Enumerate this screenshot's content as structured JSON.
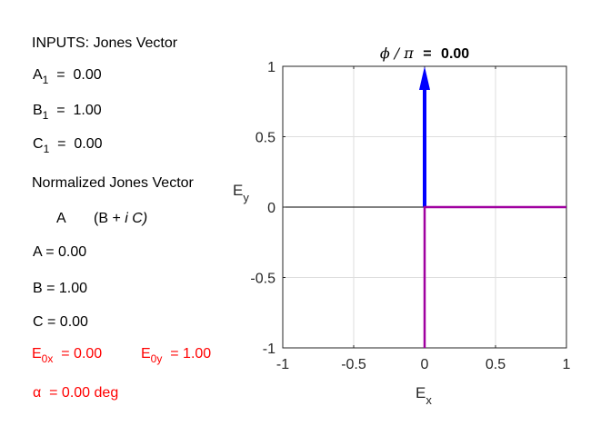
{
  "left_panel": {
    "inputs_heading": "INPUTS: Jones Vector",
    "a1": {
      "letter": "A",
      "sub": "1",
      "eq": "=",
      "value": "0.00"
    },
    "b1": {
      "letter": "B",
      "sub": "1",
      "eq": "=",
      "value": "1.00"
    },
    "c1": {
      "letter": "C",
      "sub": "1",
      "eq": "=",
      "value": "0.00"
    },
    "normalized_heading": "Normalized Jones Vector",
    "vector_form": {
      "a": "A",
      "b_open": "(B +",
      "i": "i",
      "c_close": "C)"
    },
    "a": "A  =  0.00",
    "b": "B  =  1.00",
    "c": "C  =  0.00",
    "e0x": {
      "letter": "E",
      "sub": "0x",
      "text": "=  0.00"
    },
    "e0y": {
      "letter": "E",
      "sub": "0y",
      "text": "=  1.00"
    },
    "alpha": {
      "symbol": "α",
      "text": "=  0.00  deg"
    }
  },
  "chart_data": {
    "type": "line",
    "title": {
      "symbol": "ϕ / π",
      "eq": "=",
      "value": "0.00"
    },
    "xlabel": {
      "letter": "E",
      "sub": "x"
    },
    "ylabel": {
      "letter": "E",
      "sub": "y"
    },
    "xlim": [
      -1,
      1
    ],
    "ylim": [
      -1,
      1
    ],
    "xticks": [
      -1,
      -0.5,
      0,
      0.5,
      1
    ],
    "xtick_labels": [
      "-1",
      "-0.5",
      "0",
      "0.5",
      "1"
    ],
    "yticks": [
      -1,
      -0.5,
      0,
      0.5,
      1
    ],
    "ytick_labels": [
      "-1",
      "-0.5",
      "0",
      "0.5",
      "1"
    ],
    "grid": true,
    "series": [
      {
        "kind": "arrow",
        "x": [
          0,
          0
        ],
        "y": [
          0,
          1
        ],
        "color": "#0000ff"
      },
      {
        "kind": "line",
        "x": [
          0,
          0,
          1
        ],
        "y": [
          -1,
          0,
          0
        ],
        "color": "#a000a0"
      }
    ]
  },
  "colors": {
    "accent_red": "#ff0000",
    "arrow_blue": "#0000ff",
    "trace_purple": "#a000a0"
  }
}
